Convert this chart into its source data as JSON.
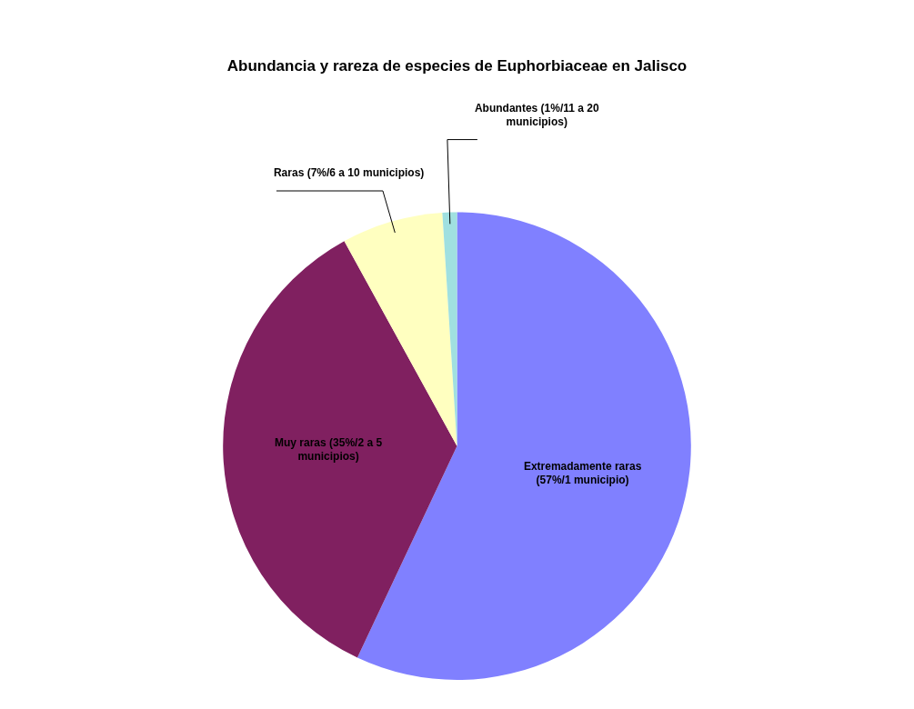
{
  "chart_data": {
    "type": "pie",
    "title": "Abundancia y rareza de especies de Euphorbiaceae en Jalisco",
    "categories": [
      "Extremadamente raras (57%/1 municipio)",
      "Muy raras (35%/2 a 5 municipios)",
      "Raras (7%/6 a 10 municipios)",
      "Abundantes (1%/11 a 20 municipios)"
    ],
    "values": [
      57,
      35,
      7,
      1
    ],
    "colors": [
      "#8080ff",
      "#802060",
      "#ffffc0",
      "#a0e0e0"
    ]
  }
}
